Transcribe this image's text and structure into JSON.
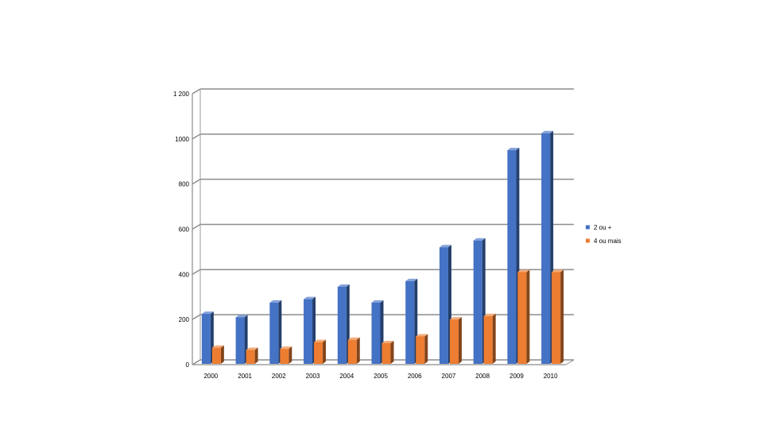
{
  "chart_data": {
    "type": "bar",
    "categories": [
      "2000",
      "2001",
      "2002",
      "2003",
      "2004",
      "2005",
      "2006",
      "2007",
      "2008",
      "2009",
      "2010"
    ],
    "series": [
      {
        "name": "2 ou +",
        "color": "#4472C4",
        "values": [
          225,
          210,
          275,
          290,
          345,
          275,
          370,
          520,
          550,
          950,
          1025
        ]
      },
      {
        "name": "4 ou mais",
        "color": "#ED7D31",
        "values": [
          75,
          65,
          70,
          100,
          110,
          95,
          125,
          200,
          215,
          410,
          410
        ]
      }
    ],
    "yticks": [
      "0",
      "200",
      "400",
      "600",
      "800",
      "1000",
      "1 200"
    ],
    "ylim": [
      0,
      1200
    ],
    "grid": true,
    "legend_position": "right",
    "style": "3d-clustered-column"
  }
}
